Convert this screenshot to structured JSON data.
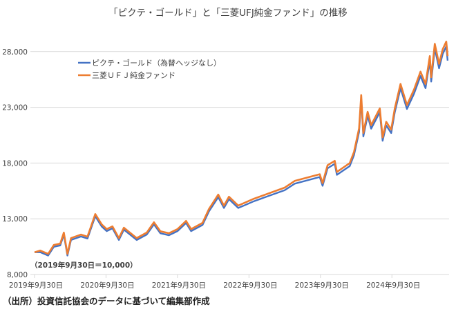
{
  "chart_data": {
    "type": "line",
    "title": "「ピクテ・ゴールド」と「三菱UFJ純金ファンド」の推移",
    "note": "（2019年9月30日＝10,000）",
    "source": "（出所）投資信託協会のデータに基づいて編集部作成",
    "xlabel": "",
    "ylabel": "",
    "ylim": [
      8000,
      29500
    ],
    "xlim": [
      2019.75,
      2025.55
    ],
    "y_ticks": [
      8000,
      13000,
      18000,
      23000,
      28000
    ],
    "y_tick_labels": [
      "8,000",
      "13,000",
      "18,000",
      "23,000",
      "28,000"
    ],
    "x_ticks": [
      2019.75,
      2020.75,
      2021.75,
      2022.75,
      2023.75,
      2024.75
    ],
    "x_tick_labels": [
      "2019年9月30日",
      "2020年9月30日",
      "2021年9月30日",
      "2022年9月30日",
      "2023年9月30日",
      "2024年9月30日"
    ],
    "grid": true,
    "legend_placement": "top-left",
    "x": [
      2019.75,
      2019.83,
      2019.94,
      2020.02,
      2020.11,
      2020.16,
      2020.21,
      2020.26,
      2020.4,
      2020.49,
      2020.6,
      2020.69,
      2020.76,
      2020.84,
      2020.93,
      2021.0,
      2021.18,
      2021.32,
      2021.42,
      2021.51,
      2021.63,
      2021.75,
      2021.87,
      2021.94,
      2022.1,
      2022.19,
      2022.32,
      2022.4,
      2022.47,
      2022.6,
      2022.71,
      2022.82,
      2023.25,
      2023.39,
      2023.74,
      2023.78,
      2023.85,
      2023.95,
      2023.98,
      2024.16,
      2024.22,
      2024.29,
      2024.32,
      2024.35,
      2024.41,
      2024.46,
      2024.58,
      2024.62,
      2024.67,
      2024.74,
      2024.79,
      2024.87,
      2024.96,
      2025.06,
      2025.15,
      2025.22,
      2025.28,
      2025.3,
      2025.35,
      2025.41,
      2025.46,
      2025.51,
      2025.53
    ],
    "series": [
      {
        "name": "ピクテ・ゴールド（為替ヘッジなし）",
        "color": "#4472c4",
        "values": [
          10000,
          10000,
          9700,
          10490,
          10610,
          11580,
          9700,
          11100,
          11410,
          11230,
          13230,
          12310,
          11890,
          12140,
          11100,
          12020,
          11100,
          11580,
          12500,
          11700,
          11520,
          11890,
          12620,
          11890,
          12440,
          13660,
          14940,
          13970,
          14760,
          13970,
          14270,
          14580,
          15560,
          16150,
          16750,
          15960,
          17530,
          17930,
          16940,
          17730,
          18720,
          20780,
          23740,
          20390,
          22260,
          21080,
          22560,
          20000,
          21370,
          20690,
          22560,
          24720,
          22850,
          24230,
          25810,
          24720,
          27190,
          25310,
          28270,
          26500,
          27780,
          28470,
          27190
        ]
      },
      {
        "name": "三菱ＵＦＪ純金ファンド",
        "color": "#ed7d31",
        "values": [
          10000,
          10150,
          9850,
          10650,
          10770,
          11760,
          9850,
          11270,
          11580,
          11400,
          13430,
          12500,
          12070,
          12320,
          11270,
          12200,
          11270,
          11760,
          12690,
          11880,
          11700,
          12070,
          12810,
          12070,
          12630,
          13870,
          15170,
          14180,
          14980,
          14180,
          14490,
          14800,
          15800,
          16400,
          17000,
          16200,
          17800,
          18200,
          17200,
          18000,
          19000,
          21100,
          24100,
          20700,
          22600,
          21400,
          22900,
          20300,
          21700,
          21000,
          22900,
          25100,
          23200,
          24600,
          26200,
          25100,
          27600,
          25700,
          28700,
          26900,
          28200,
          28900,
          27600
        ]
      }
    ]
  }
}
